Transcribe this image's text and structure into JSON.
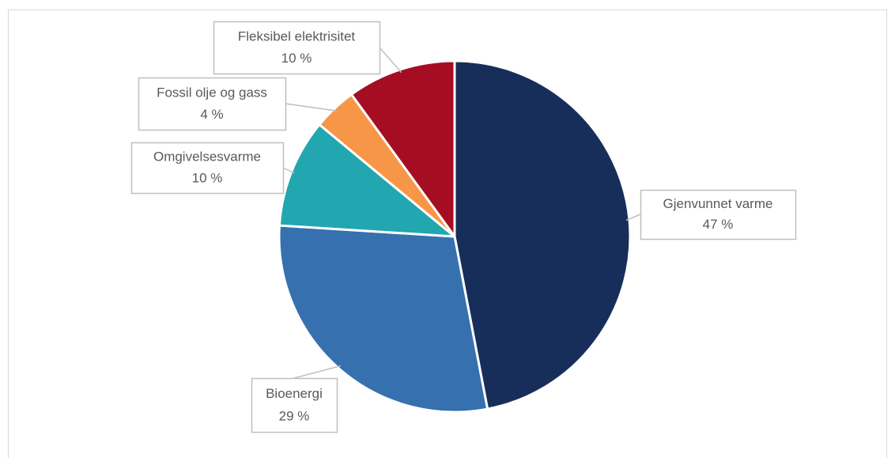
{
  "chart_data": {
    "type": "pie",
    "categories": [
      "Gjenvunnet varme",
      "Bioenergi",
      "Omgivelsesvarme",
      "Fossil olje og gass",
      "Fleksibel elektrisitet"
    ],
    "values": [
      47,
      29,
      10,
      4,
      10
    ],
    "value_labels": [
      "47 %",
      "29 %",
      "10 %",
      "4 %",
      "10 %"
    ],
    "colors": [
      "#182e5a",
      "#3670ae",
      "#22a6b0",
      "#f79646",
      "#a50e22"
    ]
  }
}
